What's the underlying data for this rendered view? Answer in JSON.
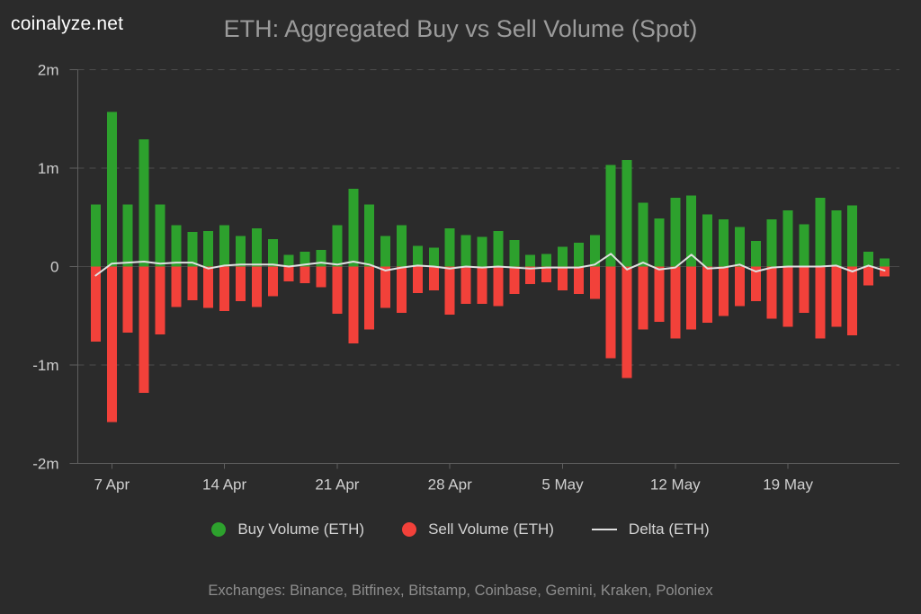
{
  "brand": {
    "logo_text": "coinalyze.net"
  },
  "header": {
    "title": "ETH: Aggregated Buy vs Sell Volume (Spot)"
  },
  "legend": {
    "items": [
      {
        "label": "Buy Volume (ETH)",
        "swatch": "circle",
        "color": "#2da12d"
      },
      {
        "label": "Sell Volume (ETH)",
        "swatch": "circle",
        "color": "#f2413a"
      },
      {
        "label": "Delta (ETH)",
        "swatch": "line",
        "color": "#e0e0e0"
      }
    ]
  },
  "footer": {
    "exchanges_note": "Exchanges: Binance, Bitfinex, Bitstamp, Coinbase, Gemini, Kraken, Poloniex"
  },
  "colors": {
    "background": "#2b2b2b",
    "buy": "#2da12d",
    "sell": "#f2413a",
    "delta_line": "#e0e0e0",
    "grid_dashed": "#4c4c4c",
    "zero_line": "#474747",
    "axis": "#5f5f5f",
    "axis_label": "#cfcfcf",
    "title": "#9b9b9b",
    "legend_text": "#d4d4d4",
    "footer_text": "#8d8d8d",
    "logo": "#ffffff"
  },
  "chart_data": {
    "type": "bar",
    "title": "ETH: Aggregated Buy vs Sell Volume (Spot)",
    "y_unit": "millions of ETH",
    "ylim": [
      -2,
      2
    ],
    "y_ticks": [
      {
        "value": 2,
        "label": "2m"
      },
      {
        "value": 1,
        "label": "1m"
      },
      {
        "value": 0,
        "label": "0"
      },
      {
        "value": -1,
        "label": "-1m"
      },
      {
        "value": -2,
        "label": "-2m"
      }
    ],
    "grid": "dashed horizontal at 2m, 1m, -1m",
    "legend_position": "bottom",
    "x_tick_labels": [
      "7 Apr",
      "14 Apr",
      "21 Apr",
      "28 Apr",
      "5 May",
      "12 May",
      "19 May"
    ],
    "x_tick_indices": [
      1,
      8,
      15,
      22,
      29,
      36,
      43
    ],
    "categories": [
      "6 Apr",
      "7 Apr",
      "8 Apr",
      "9 Apr",
      "10 Apr",
      "11 Apr",
      "12 Apr",
      "13 Apr",
      "14 Apr",
      "15 Apr",
      "16 Apr",
      "17 Apr",
      "18 Apr",
      "19 Apr",
      "20 Apr",
      "21 Apr",
      "22 Apr",
      "23 Apr",
      "24 Apr",
      "25 Apr",
      "26 Apr",
      "27 Apr",
      "28 Apr",
      "29 Apr",
      "30 Apr",
      "1 May",
      "2 May",
      "3 May",
      "4 May",
      "5 May",
      "6 May",
      "7 May",
      "8 May",
      "9 May",
      "10 May",
      "11 May",
      "12 May",
      "13 May",
      "14 May",
      "15 May",
      "16 May",
      "17 May",
      "18 May",
      "19 May",
      "20 May",
      "21 May",
      "22 May",
      "23 May",
      "24 May",
      "25 May"
    ],
    "series": [
      {
        "name": "Buy Volume (ETH)",
        "type": "bar",
        "color": "#2da12d",
        "values": [
          0.63,
          1.57,
          0.63,
          1.29,
          0.63,
          0.42,
          0.35,
          0.36,
          0.42,
          0.31,
          0.39,
          0.28,
          0.12,
          0.15,
          0.17,
          0.42,
          0.79,
          0.63,
          0.31,
          0.42,
          0.21,
          0.19,
          0.39,
          0.32,
          0.3,
          0.36,
          0.27,
          0.12,
          0.13,
          0.2,
          0.24,
          0.32,
          1.03,
          1.08,
          0.65,
          0.49,
          0.7,
          0.72,
          0.53,
          0.48,
          0.4,
          0.26,
          0.48,
          0.57,
          0.43,
          0.7,
          0.57,
          0.62,
          0.15,
          0.08
        ]
      },
      {
        "name": "Sell Volume (ETH)",
        "type": "bar",
        "color": "#f2413a",
        "values": [
          -0.76,
          -1.58,
          -0.67,
          -1.28,
          -0.69,
          -0.41,
          -0.34,
          -0.42,
          -0.45,
          -0.35,
          -0.41,
          -0.3,
          -0.15,
          -0.17,
          -0.21,
          -0.48,
          -0.78,
          -0.64,
          -0.42,
          -0.47,
          -0.27,
          -0.24,
          -0.49,
          -0.38,
          -0.38,
          -0.4,
          -0.28,
          -0.18,
          -0.16,
          -0.24,
          -0.28,
          -0.33,
          -0.93,
          -1.13,
          -0.64,
          -0.56,
          -0.73,
          -0.64,
          -0.57,
          -0.5,
          -0.4,
          -0.35,
          -0.53,
          -0.61,
          -0.47,
          -0.73,
          -0.61,
          -0.7,
          -0.19,
          -0.1
        ]
      },
      {
        "name": "Delta (ETH)",
        "type": "line",
        "color": "#e0e0e0",
        "values": [
          -0.09,
          0.03,
          0.04,
          0.05,
          0.03,
          0.04,
          0.04,
          -0.02,
          0.01,
          0.02,
          0.02,
          0.02,
          0.0,
          0.02,
          0.04,
          0.02,
          0.05,
          0.02,
          -0.04,
          -0.01,
          0.01,
          0.0,
          -0.02,
          0.0,
          -0.01,
          0.0,
          -0.01,
          -0.02,
          -0.01,
          -0.01,
          -0.01,
          0.02,
          0.13,
          -0.03,
          0.04,
          -0.03,
          -0.01,
          0.12,
          -0.02,
          -0.01,
          0.02,
          -0.05,
          -0.01,
          0.0,
          0.0,
          0.0,
          0.01,
          -0.05,
          0.01,
          -0.04
        ]
      }
    ]
  }
}
